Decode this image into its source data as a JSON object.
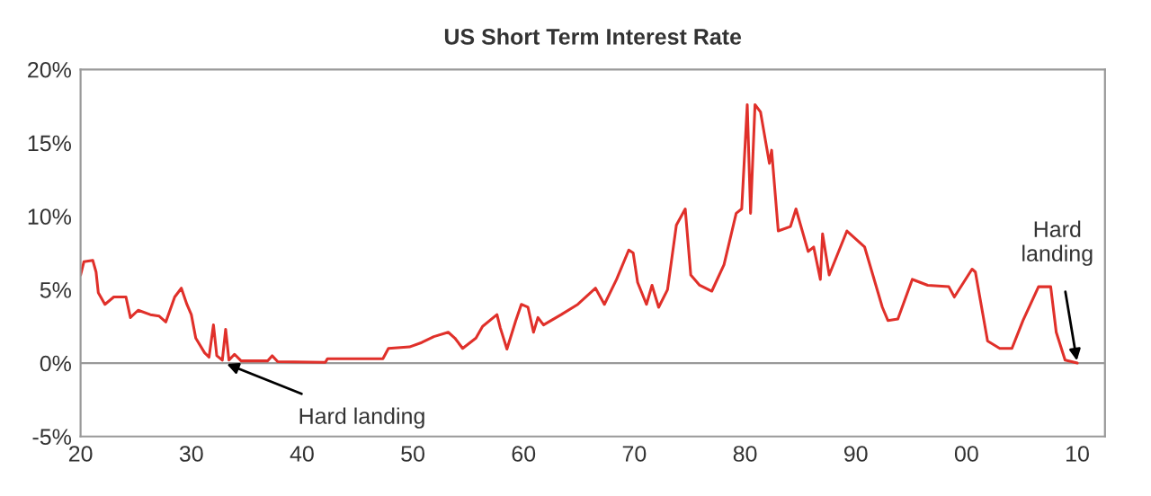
{
  "chart_data": {
    "type": "line",
    "title": "US Short Term Interest Rate",
    "x": [
      1920,
      1920.3,
      1921.1,
      1921.4,
      1921.6,
      1922.2,
      1923,
      1924.1,
      1924.5,
      1925.2,
      1926.3,
      1927.1,
      1927.7,
      1928.5,
      1929.1,
      1929.6,
      1930,
      1930.4,
      1931.2,
      1931.6,
      1932,
      1932.3,
      1932.8,
      1933.1,
      1933.4,
      1933.9,
      1934.5,
      1936.9,
      1937.3,
      1937.8,
      1942.1,
      1942.3,
      1947.3,
      1947.8,
      1949.7,
      1950.8,
      1951.9,
      1953.2,
      1953.8,
      1954.5,
      1955.7,
      1956.3,
      1957.6,
      1957.9,
      1958.5,
      1959.3,
      1959.8,
      1960.4,
      1960.9,
      1961.3,
      1961.8,
      1963.4,
      1964.9,
      1966.5,
      1967.3,
      1968.4,
      1969.5,
      1969.9,
      1970.3,
      1971.1,
      1971.6,
      1972.2,
      1973,
      1973.8,
      1974.6,
      1975.1,
      1975.9,
      1977,
      1978.1,
      1979.2,
      1979.7,
      1980.2,
      1980.5,
      1980.9,
      1981.4,
      1982.2,
      1982.4,
      1983,
      1984.1,
      1984.6,
      1985.7,
      1986.2,
      1986.8,
      1987,
      1987.6,
      1989.2,
      1990.8,
      1992.4,
      1992.9,
      1993.8,
      1995.1,
      1996.5,
      1998.4,
      1998.9,
      2000.5,
      2000.8,
      2001.9,
      2003,
      2004.1,
      2005.1,
      2006.5,
      2007.6,
      2008.1,
      2008.9,
      2010
    ],
    "series": [
      {
        "color": "#e0302a",
        "values": [
          6.0,
          6.9,
          7.0,
          6.2,
          4.8,
          4.0,
          4.5,
          4.5,
          3.1,
          3.6,
          3.3,
          3.2,
          2.8,
          4.5,
          5.1,
          4.0,
          3.3,
          1.7,
          0.7,
          0.4,
          2.6,
          0.5,
          0.2,
          2.3,
          0.2,
          0.6,
          0.15,
          0.15,
          0.5,
          0.1,
          0.05,
          0.3,
          0.3,
          1.0,
          1.1,
          1.4,
          1.8,
          2.1,
          1.7,
          1.0,
          1.7,
          2.5,
          3.3,
          2.4,
          0.95,
          2.9,
          4.0,
          3.8,
          2.1,
          3.1,
          2.6,
          3.3,
          4.0,
          5.1,
          4.0,
          5.7,
          7.7,
          7.5,
          5.5,
          4.0,
          5.3,
          3.8,
          5.0,
          9.4,
          10.5,
          6.0,
          5.3,
          4.9,
          6.7,
          10.2,
          10.5,
          17.6,
          10.2,
          17.6,
          17.1,
          13.6,
          14.5,
          9.0,
          9.3,
          10.5,
          7.6,
          7.9,
          5.7,
          8.8,
          6.0,
          9.0,
          7.9,
          3.8,
          2.9,
          3.0,
          5.7,
          5.3,
          5.2,
          4.5,
          6.4,
          6.2,
          1.5,
          1.0,
          1.0,
          2.9,
          5.2,
          5.2,
          2.1,
          0.2,
          0.0
        ]
      }
    ],
    "xlim": [
      1920,
      2012.5
    ],
    "xticks": [
      {
        "value": 1920,
        "label": "20"
      },
      {
        "value": 1930,
        "label": "30"
      },
      {
        "value": 1940,
        "label": "40"
      },
      {
        "value": 1950,
        "label": "50"
      },
      {
        "value": 1960,
        "label": "60"
      },
      {
        "value": 1970,
        "label": "70"
      },
      {
        "value": 1980,
        "label": "80"
      },
      {
        "value": 1990,
        "label": "90"
      },
      {
        "value": 2000,
        "label": "00"
      },
      {
        "value": 2010,
        "label": "10"
      }
    ],
    "ylim": [
      -5,
      20
    ],
    "yticks": [
      {
        "value": -5,
        "label": "-5%"
      },
      {
        "value": 0,
        "label": "0%"
      },
      {
        "value": 5,
        "label": "5%"
      },
      {
        "value": 10,
        "label": "10%"
      },
      {
        "value": 15,
        "label": "15%"
      },
      {
        "value": 20,
        "label": "20%"
      }
    ],
    "ref_lines": [
      {
        "axis": "y",
        "value": 0,
        "color": "#999999"
      }
    ],
    "annotations": [
      {
        "text": "Hard landing",
        "x": 1933,
        "y": 0
      },
      {
        "text": "Hard\nlanding",
        "x": 2010,
        "y": 0
      }
    ],
    "grid": false,
    "legend": false,
    "marker": "none",
    "line_style": "solid"
  }
}
